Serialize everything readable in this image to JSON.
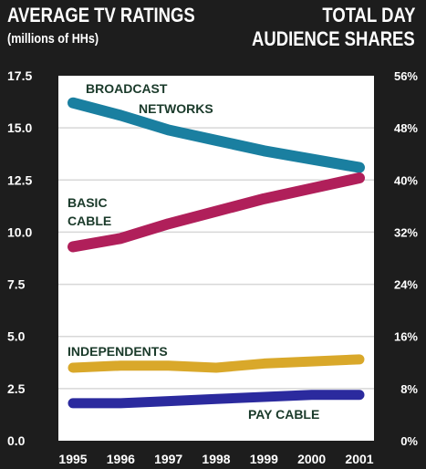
{
  "header": {
    "left_title": "AVERAGE TV RATINGS",
    "left_subtitle": "(millions of HHs)",
    "right_title_line1": "TOTAL DAY",
    "right_title_line2": "AUDIENCE SHARES"
  },
  "colors": {
    "background": "#1d1d1d",
    "plot": "#ffffff",
    "grid": "#d8d8d8",
    "broadcast": "#1a7fa0",
    "basic_cable": "#b01f5a",
    "independents": "#d9a82a",
    "pay_cable": "#2b2a9e"
  },
  "chart_data": {
    "type": "line",
    "x": [
      "1995",
      "1996",
      "1997",
      "1998",
      "1999",
      "2000",
      "2001"
    ],
    "ylim": [
      0,
      17.5
    ],
    "yticks": [
      "0.0",
      "2.5",
      "5.0",
      "7.5",
      "10.0",
      "12.5",
      "15.0",
      "17.5"
    ],
    "right_ticks": [
      "0%",
      "8%",
      "16%",
      "24%",
      "32%",
      "40%",
      "48%",
      "56%"
    ],
    "grid": true,
    "series": [
      {
        "name": "BROADCAST NETWORKS",
        "label_lines": [
          "BROADCAST",
          "NETWORKS"
        ],
        "color": "#1a7fa0",
        "values": [
          16.2,
          15.6,
          14.9,
          14.4,
          13.9,
          13.5,
          13.1
        ]
      },
      {
        "name": "BASIC CABLE",
        "label_lines": [
          "BASIC",
          "CABLE"
        ],
        "color": "#b01f5a",
        "values": [
          9.3,
          9.7,
          10.4,
          11.0,
          11.6,
          12.1,
          12.6
        ]
      },
      {
        "name": "INDEPENDENTS",
        "label_lines": [
          "INDEPENDENTS"
        ],
        "color": "#d9a82a",
        "values": [
          3.5,
          3.6,
          3.6,
          3.5,
          3.7,
          3.8,
          3.9
        ]
      },
      {
        "name": "PAY CABLE",
        "label_lines": [
          "PAY CABLE"
        ],
        "color": "#2b2a9e",
        "values": [
          1.8,
          1.8,
          1.9,
          2.0,
          2.1,
          2.2,
          2.2
        ]
      }
    ]
  }
}
